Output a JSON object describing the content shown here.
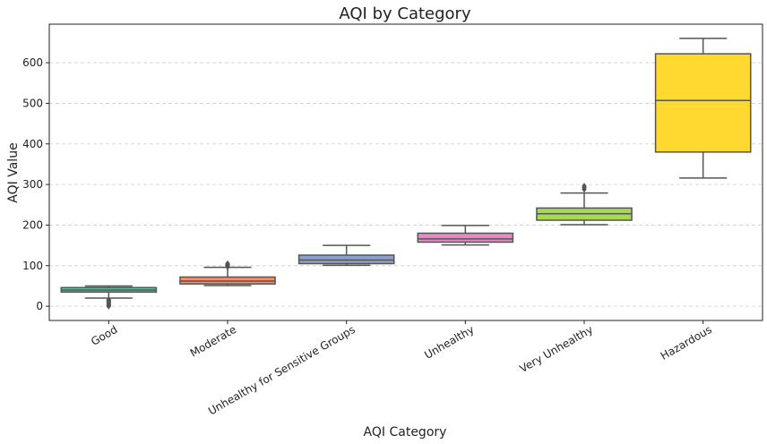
{
  "chart_data": {
    "type": "box",
    "title": "AQI by Category",
    "xlabel": "AQI Category",
    "ylabel": "AQI Value",
    "ylim": [
      -35,
      695
    ],
    "yticks": [
      0,
      100,
      200,
      300,
      400,
      500,
      600
    ],
    "grid": "y-dashed",
    "categories": [
      "Good",
      "Moderate",
      "Unhealthy for Sensitive Groups",
      "Unhealthy",
      "Very Unhealthy",
      "Hazardous"
    ],
    "colors": [
      "#66c2a5",
      "#fc8d62",
      "#8da0cb",
      "#e78ac3",
      "#a6d854",
      "#ffd92f"
    ],
    "boxes": [
      {
        "category": "Good",
        "whisker_low": 20,
        "q1": 35,
        "median": 40,
        "q3": 46,
        "whisker_high": 50,
        "outliers": [
          0,
          2,
          4,
          6,
          8,
          10,
          12,
          14,
          16
        ]
      },
      {
        "category": "Moderate",
        "whisker_low": 51,
        "q1": 55,
        "median": 62,
        "q3": 72,
        "whisker_high": 96,
        "outliers": [
          97,
          99,
          101,
          103,
          105
        ]
      },
      {
        "category": "Unhealthy for Sensitive Groups",
        "whisker_low": 101,
        "q1": 105,
        "median": 114,
        "q3": 126,
        "whisker_high": 150,
        "outliers": []
      },
      {
        "category": "Unhealthy",
        "whisker_low": 151,
        "q1": 158,
        "median": 166,
        "q3": 180,
        "whisker_high": 199,
        "outliers": []
      },
      {
        "category": "Very Unhealthy",
        "whisker_low": 201,
        "q1": 212,
        "median": 228,
        "q3": 242,
        "whisker_high": 279,
        "outliers": [
          288,
          292,
          296
        ]
      },
      {
        "category": "Hazardous",
        "whisker_low": 316,
        "q1": 380,
        "median": 507,
        "q3": 622,
        "whisker_high": 660,
        "outliers": []
      }
    ]
  }
}
